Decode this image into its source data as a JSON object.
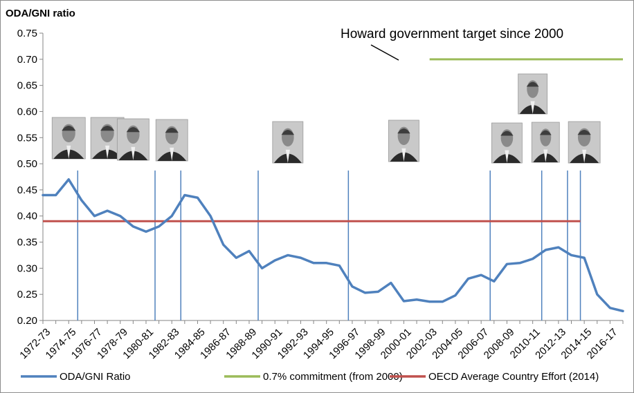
{
  "chart_data": {
    "type": "line",
    "title": "ODA/GNI ratio",
    "ylim": [
      0.2,
      0.75
    ],
    "yticks": [
      "0.20",
      "0.25",
      "0.30",
      "0.35",
      "0.40",
      "0.45",
      "0.50",
      "0.55",
      "0.60",
      "0.65",
      "0.70",
      "0.75"
    ],
    "categories": [
      "1972-73",
      "1973-74",
      "1974-75",
      "1975-76",
      "1976-77",
      "1977-78",
      "1978-79",
      "1979-80",
      "1980-81",
      "1981-82",
      "1982-83",
      "1983-84",
      "1984-85",
      "1985-86",
      "1986-87",
      "1987-88",
      "1988-89",
      "1989-90",
      "1990-91",
      "1991-92",
      "1992-93",
      "1993-94",
      "1994-95",
      "1995-96",
      "1996-97",
      "1997-98",
      "1998-99",
      "1999-00",
      "2000-01",
      "2001-02",
      "2002-03",
      "2003-04",
      "2004-05",
      "2005-06",
      "2006-07",
      "2007-08",
      "2008-09",
      "2009-10",
      "2010-11",
      "2011-12",
      "2012-13",
      "2013-14",
      "2014-15",
      "2015-16",
      "2016-17",
      "2017-18"
    ],
    "xtick_labels": [
      "1972-73",
      "1974-75",
      "1976-77",
      "1978-79",
      "1980-81",
      "1982-83",
      "1984-85",
      "1986-87",
      "1988-89",
      "1990-91",
      "1992-93",
      "1994-95",
      "1996-97",
      "1998-99",
      "2000-01",
      "2002-03",
      "2004-05",
      "2006-07",
      "2008-09",
      "2010-11",
      "2012-13",
      "2014-15",
      "2016-17"
    ],
    "series": [
      {
        "name": "ODA/GNI Ratio",
        "color": "#4f81bd",
        "values": [
          0.44,
          0.44,
          0.47,
          0.43,
          0.4,
          0.41,
          0.4,
          0.38,
          0.37,
          0.38,
          0.4,
          0.44,
          0.435,
          0.4,
          0.345,
          0.32,
          0.333,
          0.3,
          0.315,
          0.325,
          0.32,
          0.31,
          0.31,
          0.305,
          0.265,
          0.253,
          0.255,
          0.272,
          0.237,
          0.24,
          0.236,
          0.236,
          0.248,
          0.28,
          0.287,
          0.275,
          0.308,
          0.31,
          0.318,
          0.335,
          0.34,
          0.325,
          0.32,
          0.25,
          0.224,
          0.218
        ]
      },
      {
        "name": "0.7% commitment (from 2000)",
        "color": "#9bbb59",
        "x_start": "2002-03",
        "x_end": "2017-18",
        "value": 0.7
      },
      {
        "name": "OECD Average Country Effort (2014)",
        "color": "#c0504d",
        "x_start": "1972-73",
        "x_end": "2014-15",
        "value": 0.39
      }
    ],
    "government_changes": [
      "1975-76",
      "1981-82",
      "1983-84",
      "1989-90",
      "1996-97",
      "2007-08",
      "2011-12",
      "2013-14",
      "2014-15"
    ],
    "annotation": "Howard government target since 2000",
    "legend_position": "bottom",
    "grid": false,
    "portraits": [
      {
        "name": "portrait-1",
        "at": "1974-75"
      },
      {
        "name": "portrait-2",
        "at": "1977-78"
      },
      {
        "name": "portrait-3",
        "at": "1979-80"
      },
      {
        "name": "portrait-4",
        "at": "1982-83"
      },
      {
        "name": "portrait-5",
        "at": "1991-92"
      },
      {
        "name": "portrait-6",
        "at": "2000-01"
      },
      {
        "name": "portrait-7",
        "at": "2008-09"
      },
      {
        "name": "portrait-8",
        "at": "2010-11"
      },
      {
        "name": "portrait-9",
        "at": "2011-12"
      },
      {
        "name": "portrait-10",
        "at": "2014-15"
      }
    ]
  }
}
